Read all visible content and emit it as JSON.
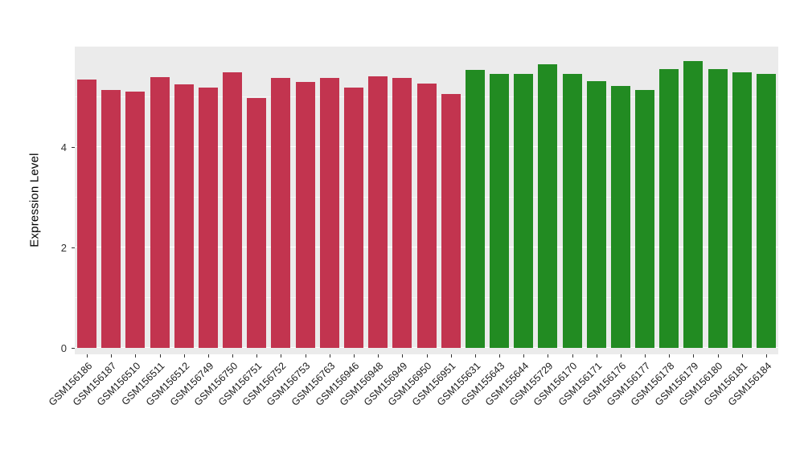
{
  "chart_data": {
    "type": "bar",
    "title": "",
    "xlabel": "",
    "ylabel": "Expression Level",
    "ylim": [
      0,
      6
    ],
    "yticks": [
      0,
      2,
      4
    ],
    "yminor": [
      1,
      3,
      5
    ],
    "grid": "on",
    "legend": "none",
    "panel_background": "#EBEBEB",
    "group_colors": {
      "group1": "#C2344F",
      "group2": "#228B22"
    },
    "bars": [
      {
        "label": "GSM156186",
        "value": 5.35,
        "group": "group1"
      },
      {
        "label": "GSM156187",
        "value": 5.14,
        "group": "group1"
      },
      {
        "label": "GSM156510",
        "value": 5.1,
        "group": "group1"
      },
      {
        "label": "GSM156511",
        "value": 5.4,
        "group": "group1"
      },
      {
        "label": "GSM156512",
        "value": 5.25,
        "group": "group1"
      },
      {
        "label": "GSM156749",
        "value": 5.19,
        "group": "group1"
      },
      {
        "label": "GSM156750",
        "value": 5.49,
        "group": "group1"
      },
      {
        "label": "GSM156751",
        "value": 4.98,
        "group": "group1"
      },
      {
        "label": "GSM156752",
        "value": 5.37,
        "group": "group1"
      },
      {
        "label": "GSM156753",
        "value": 5.29,
        "group": "group1"
      },
      {
        "label": "GSM156763",
        "value": 5.37,
        "group": "group1"
      },
      {
        "label": "GSM156946",
        "value": 5.19,
        "group": "group1"
      },
      {
        "label": "GSM156948",
        "value": 5.41,
        "group": "group1"
      },
      {
        "label": "GSM156949",
        "value": 5.38,
        "group": "group1"
      },
      {
        "label": "GSM156950",
        "value": 5.27,
        "group": "group1"
      },
      {
        "label": "GSM156951",
        "value": 5.05,
        "group": "group1"
      },
      {
        "label": "GSM155631",
        "value": 5.54,
        "group": "group2"
      },
      {
        "label": "GSM155643",
        "value": 5.45,
        "group": "group2"
      },
      {
        "label": "GSM155644",
        "value": 5.46,
        "group": "group2"
      },
      {
        "label": "GSM155729",
        "value": 5.65,
        "group": "group2"
      },
      {
        "label": "GSM156170",
        "value": 5.45,
        "group": "group2"
      },
      {
        "label": "GSM156171",
        "value": 5.32,
        "group": "group2"
      },
      {
        "label": "GSM156176",
        "value": 5.21,
        "group": "group2"
      },
      {
        "label": "GSM156177",
        "value": 5.14,
        "group": "group2"
      },
      {
        "label": "GSM156178",
        "value": 5.56,
        "group": "group2"
      },
      {
        "label": "GSM156179",
        "value": 5.72,
        "group": "group2"
      },
      {
        "label": "GSM156180",
        "value": 5.56,
        "group": "group2"
      },
      {
        "label": "GSM156181",
        "value": 5.49,
        "group": "group2"
      },
      {
        "label": "GSM156184",
        "value": 5.46,
        "group": "group2"
      }
    ]
  }
}
